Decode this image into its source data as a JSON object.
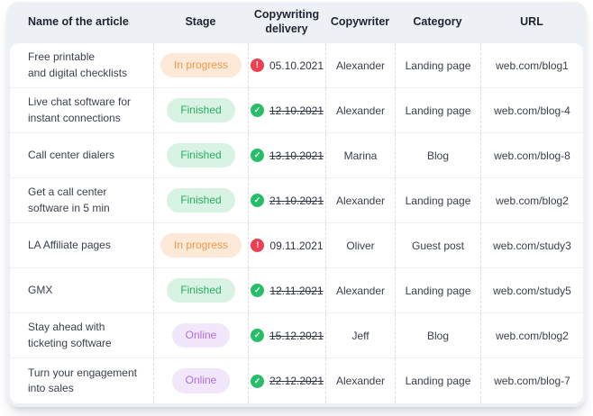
{
  "table": {
    "columns": [
      {
        "key": "name",
        "label": "Name of the article"
      },
      {
        "key": "stage",
        "label": "Stage"
      },
      {
        "key": "delivery",
        "label": "Copywriting delivery"
      },
      {
        "key": "copywriter",
        "label": "Copywriter"
      },
      {
        "key": "category",
        "label": "Category"
      },
      {
        "key": "url",
        "label": "URL"
      }
    ],
    "rows": [
      {
        "name": "Free printable\nand digital checklists",
        "stage": "In progress",
        "stage_type": "in-progress",
        "delivery_date": "05.10.2021",
        "delivery_done": false,
        "copywriter": "Alexander",
        "category": "Landing page",
        "url": "web.com/blog1"
      },
      {
        "name": "Live chat software for\ninstant connections",
        "stage": "Finished",
        "stage_type": "finished",
        "delivery_date": "12.10.2021",
        "delivery_done": true,
        "copywriter": "Alexander",
        "category": "Landing page",
        "url": "web.com/blog-4"
      },
      {
        "name": "Call center dialers",
        "stage": "Finished",
        "stage_type": "finished",
        "delivery_date": "13.10.2021",
        "delivery_done": true,
        "copywriter": "Marina",
        "category": "Blog",
        "url": "web.com/blog-8"
      },
      {
        "name": "Get a call center\nsoftware in 5 min",
        "stage": "Finished",
        "stage_type": "finished",
        "delivery_date": "21.10.2021",
        "delivery_done": true,
        "copywriter": "Alexander",
        "category": "Landing page",
        "url": "web.com/blog2"
      },
      {
        "name": "LA Affiliate pages",
        "stage": "In progress",
        "stage_type": "in-progress",
        "delivery_date": "09.11.2021",
        "delivery_done": false,
        "copywriter": "Oliver",
        "category": "Guest post",
        "url": "web.com/study3"
      },
      {
        "name": "GMX",
        "stage": "Finished",
        "stage_type": "finished",
        "delivery_date": "12.11.2021",
        "delivery_done": true,
        "copywriter": "Alexander",
        "category": "Landing page",
        "url": "web.com/study5"
      },
      {
        "name": "Stay ahead with\nticketing software",
        "stage": "Online",
        "stage_type": "online",
        "delivery_date": "15.12.2021",
        "delivery_done": true,
        "copywriter": "Jeff",
        "category": "Blog",
        "url": "web.com/blog2"
      },
      {
        "name": "Turn your engagement\ninto sales",
        "stage": "Online",
        "stage_type": "online",
        "delivery_date": "22.12.2021",
        "delivery_done": true,
        "copywriter": "Alexander",
        "category": "Landing page",
        "url": "web.com/blog-7"
      }
    ]
  },
  "icons": {
    "alert": "!",
    "check": "✓",
    "alert_name": "alert-icon",
    "check_name": "check-icon"
  },
  "colors": {
    "card_background": "#EDF0F4",
    "table_background": "#FFFFFF",
    "header_text": "#1F2430",
    "body_text": "#3A404D",
    "row_divider": "#ECEEF2",
    "column_divider_dashed": "#D8DCE3",
    "badge_in_progress_bg": "#FCE9D8",
    "badge_in_progress_text": "#F2994A",
    "badge_finished_bg": "#D8F2E3",
    "badge_finished_text": "#27AE60",
    "badge_online_bg": "#F1E6FA",
    "badge_online_text": "#B16FE0",
    "alert_icon": "#EE3E4F",
    "check_icon": "#27BE69"
  }
}
